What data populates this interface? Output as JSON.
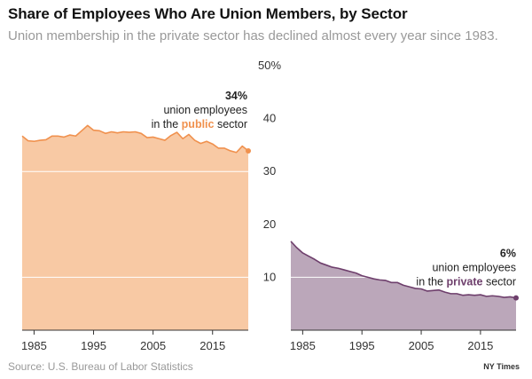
{
  "header": {
    "title": "Share of Employees Who Are Union Members, by Sector",
    "subtitle": "Union membership in the private sector has declined almost every year since 1983."
  },
  "footer": {
    "source": "Source: U.S. Bureau of Labor Statistics",
    "credit": "NY Times"
  },
  "colors": {
    "public_fill": "#f8c9a4",
    "public_line": "#f0914e",
    "private_fill": "#bba7ba",
    "private_line": "#6e3f6c",
    "gridline": "#ffffff"
  },
  "chart_data": {
    "type": "area",
    "ylim": [
      0,
      50
    ],
    "y_ticks": [
      "50%",
      "40",
      "30",
      "20",
      "10"
    ],
    "y_tick_values": [
      50,
      40,
      30,
      20,
      10
    ],
    "gridlines": [
      10,
      30
    ],
    "x_ticks": [
      "1985",
      "1995",
      "2005",
      "2015"
    ],
    "x_tick_values": [
      1985,
      1995,
      2005,
      2015
    ],
    "xlim": [
      1983,
      2021
    ],
    "panels": [
      {
        "id": "public",
        "series": {
          "x": [
            1983,
            1984,
            1985,
            1986,
            1987,
            1988,
            1989,
            1990,
            1991,
            1992,
            1993,
            1994,
            1995,
            1996,
            1997,
            1998,
            1999,
            2000,
            2001,
            2002,
            2003,
            2004,
            2005,
            2006,
            2007,
            2008,
            2009,
            2010,
            2011,
            2012,
            2013,
            2014,
            2015,
            2016,
            2017,
            2018,
            2019,
            2020,
            2021
          ],
          "values": [
            36.7,
            35.8,
            35.7,
            35.9,
            36.0,
            36.7,
            36.7,
            36.5,
            36.9,
            36.7,
            37.7,
            38.7,
            37.8,
            37.7,
            37.2,
            37.5,
            37.3,
            37.5,
            37.4,
            37.5,
            37.2,
            36.4,
            36.5,
            36.2,
            35.9,
            36.8,
            37.4,
            36.2,
            37.0,
            35.9,
            35.3,
            35.7,
            35.2,
            34.4,
            34.4,
            33.9,
            33.6,
            34.8,
            33.9
          ]
        },
        "annotation": {
          "value": "34%",
          "line1": "union employees",
          "line2_prefix": "in the ",
          "line2_highlight": "public",
          "line2_suffix": " sector"
        }
      },
      {
        "id": "private",
        "series": {
          "x": [
            1983,
            1984,
            1985,
            1986,
            1987,
            1988,
            1989,
            1990,
            1991,
            1992,
            1993,
            1994,
            1995,
            1996,
            1997,
            1998,
            1999,
            2000,
            2001,
            2002,
            2003,
            2004,
            2005,
            2006,
            2007,
            2008,
            2009,
            2010,
            2011,
            2012,
            2013,
            2014,
            2015,
            2016,
            2017,
            2018,
            2019,
            2020,
            2021
          ],
          "values": [
            16.8,
            15.6,
            14.6,
            14.0,
            13.4,
            12.7,
            12.3,
            11.9,
            11.7,
            11.4,
            11.1,
            10.8,
            10.3,
            10.0,
            9.7,
            9.5,
            9.4,
            9.0,
            9.0,
            8.5,
            8.2,
            7.9,
            7.8,
            7.4,
            7.5,
            7.6,
            7.2,
            6.9,
            6.9,
            6.6,
            6.7,
            6.6,
            6.7,
            6.4,
            6.5,
            6.4,
            6.2,
            6.3,
            6.1
          ]
        },
        "annotation": {
          "value": "6%",
          "line1": "union employees",
          "line2_prefix": "in the ",
          "line2_highlight": "private",
          "line2_suffix": " sector"
        }
      }
    ]
  }
}
